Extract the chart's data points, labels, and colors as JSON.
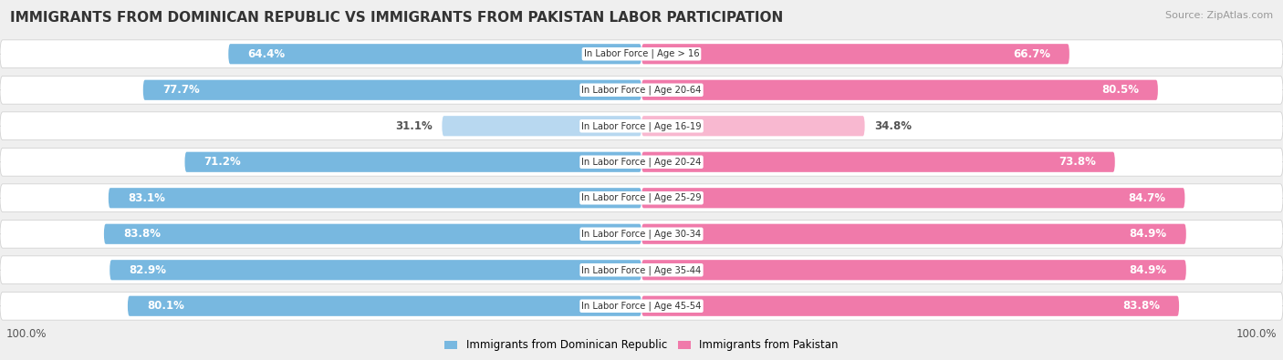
{
  "title": "IMMIGRANTS FROM DOMINICAN REPUBLIC VS IMMIGRANTS FROM PAKISTAN LABOR PARTICIPATION",
  "source": "Source: ZipAtlas.com",
  "categories": [
    "In Labor Force | Age > 16",
    "In Labor Force | Age 20-64",
    "In Labor Force | Age 16-19",
    "In Labor Force | Age 20-24",
    "In Labor Force | Age 25-29",
    "In Labor Force | Age 30-34",
    "In Labor Force | Age 35-44",
    "In Labor Force | Age 45-54"
  ],
  "dominican": [
    64.4,
    77.7,
    31.1,
    71.2,
    83.1,
    83.8,
    82.9,
    80.1
  ],
  "pakistan": [
    66.7,
    80.5,
    34.8,
    73.8,
    84.7,
    84.9,
    84.9,
    83.8
  ],
  "dominican_color_strong": "#78b8e0",
  "dominican_color_light": "#b8d8f0",
  "pakistan_color_strong": "#f07aaa",
  "pakistan_color_light": "#f8b8d0",
  "bg_color": "#efefef",
  "legend_dominican": "Immigrants from Dominican Republic",
  "legend_pakistan": "Immigrants from Pakistan",
  "max_val": 100.0,
  "label_fontsize": 8.5,
  "cat_fontsize": 7.2,
  "title_fontsize": 11,
  "source_fontsize": 8,
  "axis_label_fontsize": 8.5
}
